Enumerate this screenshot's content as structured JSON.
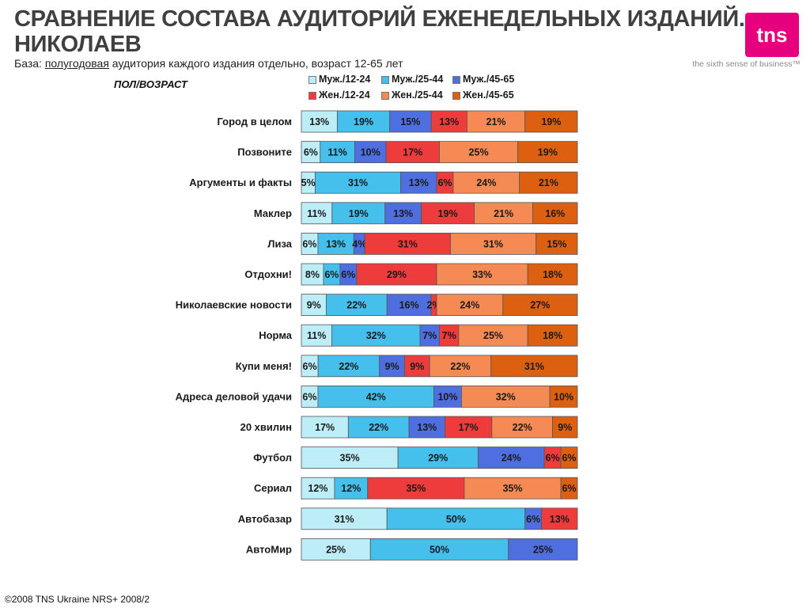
{
  "header": {
    "title": "СРАВНЕНИЕ СОСТАВА АУДИТОРИЙ ЕЖЕНЕДЕЛЬНЫХ ИЗДАНИЙ. НИКОЛАЕВ",
    "subtitle_prefix": "База: ",
    "subtitle_underlined": "полугодовая",
    "subtitle_rest": " аудитория каждого издания отдельно, возраст 12-65 лет",
    "axis_label": "ПОЛ/ВОЗРАСТ"
  },
  "logo": {
    "text": "tns",
    "tagline": "the sixth sense of business™",
    "color": "#e6007e"
  },
  "footer": {
    "text": "©2008 TNS Ukraine  NRS+ 2008/2"
  },
  "chart_data": {
    "type": "bar",
    "orientation": "horizontal-stacked-100",
    "categories": [
      "Город в целом",
      "Позвоните",
      "Аргументы и факты",
      "Маклер",
      "Лиза",
      "Отдохни!",
      "Николаевские новости",
      "Норма",
      "Купи меня!",
      "Адреса деловой удачи",
      "20 хвилин",
      "Футбол",
      "Сериал",
      "Автобазар",
      "АвтоМир"
    ],
    "series": [
      {
        "name": "Муж./12-24",
        "color": "#bdeef8",
        "values": [
          13,
          6,
          5,
          11,
          6,
          8,
          9,
          11,
          6,
          6,
          17,
          35,
          12,
          31,
          25
        ]
      },
      {
        "name": "Муж./25-44",
        "color": "#45c0ec",
        "values": [
          19,
          11,
          31,
          19,
          13,
          6,
          22,
          32,
          22,
          42,
          22,
          29,
          12,
          50,
          50
        ]
      },
      {
        "name": "Муж./45-65",
        "color": "#4f6fe0",
        "values": [
          15,
          10,
          13,
          13,
          4,
          6,
          16,
          7,
          9,
          10,
          13,
          24,
          0,
          6,
          25
        ]
      },
      {
        "name": "Жен./12-24",
        "color": "#ee3b3b",
        "values": [
          13,
          17,
          6,
          19,
          31,
          29,
          2,
          7,
          9,
          0,
          17,
          6,
          35,
          13,
          0
        ]
      },
      {
        "name": "Жен./25-44",
        "color": "#f58a55",
        "values": [
          21,
          25,
          24,
          21,
          31,
          33,
          24,
          25,
          22,
          32,
          22,
          0,
          35,
          0,
          0
        ]
      },
      {
        "name": "Жен./45-65",
        "color": "#dd5f10",
        "values": [
          19,
          19,
          21,
          16,
          15,
          18,
          27,
          18,
          31,
          10,
          9,
          6,
          6,
          0,
          0
        ]
      }
    ]
  }
}
